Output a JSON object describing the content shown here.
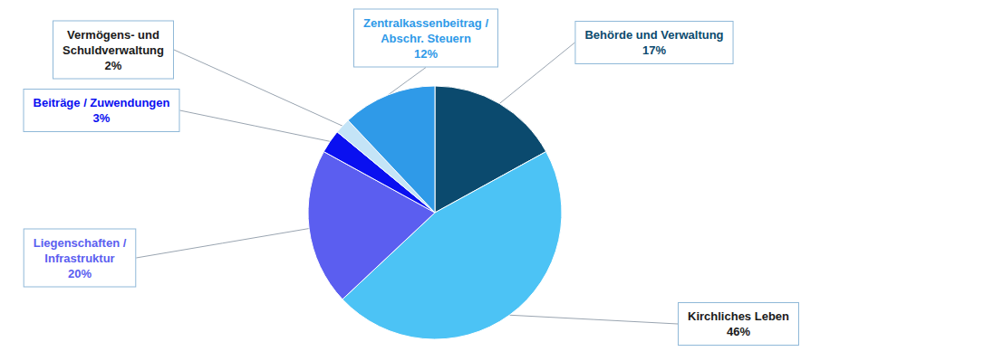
{
  "chart_data": {
    "type": "pie",
    "categories": [
      "Behörde und Verwaltung",
      "Kirchliches Leben",
      "Liegenschaften / Infrastruktur",
      "Beiträge / Zuwendungen",
      "Vermögens- und Schuldverwaltung",
      "Zentralkassenbeitrag / Abschr. Steuern"
    ],
    "values": [
      17,
      46,
      20,
      3,
      2,
      12
    ],
    "value_labels": [
      "17%",
      "46%",
      "20%",
      "3%",
      "2%",
      "12%"
    ],
    "colors": [
      "#0b4a6e",
      "#4cc3f5",
      "#5b5ef0",
      "#0a10f0",
      "#c4e4f7",
      "#2f9ae8"
    ],
    "data_labels": true
  }
}
